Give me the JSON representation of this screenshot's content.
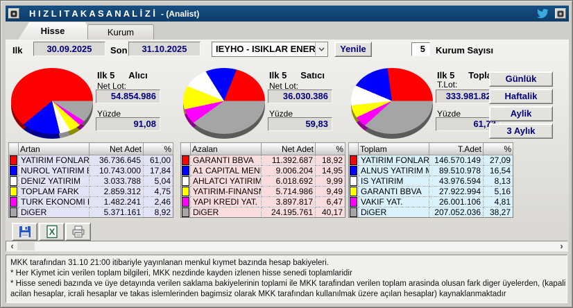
{
  "window": {
    "title": "H I Z L I   T A K A S   A N A L İ Z İ",
    "subtitle": "- (Analist)",
    "titlebar_color": "#0d3c69",
    "icons": [
      "app-icon",
      "twitter-bird-icon",
      "window-menu-icon"
    ]
  },
  "tabs": [
    {
      "label": "Hisse",
      "active": true
    },
    {
      "label": "Kurum",
      "active": false
    }
  ],
  "filters": {
    "start_label": "Ilk",
    "start_value": "30.09.2025",
    "end_label": "Son",
    "end_value": "31.10.2025",
    "symbol_value": "IEYHO - ISIKLAR ENERJI",
    "refresh_button": "Yenile",
    "firm_count_value": "5",
    "firm_count_label": "Kurum Sayısı"
  },
  "period_buttons": [
    {
      "label": "Günlük"
    },
    {
      "label": "Haftalik"
    },
    {
      "label": "Aylik"
    },
    {
      "label": "3 Aylık"
    }
  ],
  "panels": [
    {
      "rank_label": "Ilk 5",
      "side_label": "Alıcı",
      "lot_label": "Net Lot:",
      "lot_value": "54.854.986",
      "pct_label": "Yüzde",
      "pct_value": "91,08",
      "table": {
        "headers": [
          "Artan",
          "Net Adet",
          "%"
        ],
        "row_bg": "#e3e3f8",
        "rows": [
          {
            "color": "#ff0000",
            "name": "YATIRIM FONLARI",
            "value": "36.736.645",
            "pct": "61,00"
          },
          {
            "color": "#0000ff",
            "name": "NUROL YATIRIM B",
            "value": "10.743.000",
            "pct": "17,84"
          },
          {
            "color": "#ffffff",
            "name": "DENIZ YATIRIM",
            "value": "3.033.788",
            "pct": "5,04"
          },
          {
            "color": "#ffff00",
            "name": "TOPLAM FARK",
            "value": "2.859.312",
            "pct": "4,75"
          },
          {
            "color": "#ff00ff",
            "name": "TURK EKONOMI BA",
            "value": "1.482.241",
            "pct": "2,46"
          },
          {
            "color": "#a5a5a5",
            "name": "DiGER",
            "value": "5.371.161",
            "pct": "8,92"
          }
        ]
      }
    },
    {
      "rank_label": "Ilk 5",
      "side_label": "Satıcı",
      "lot_label": "Net Lot:",
      "lot_value": "36.030.386",
      "pct_label": "Yüzde",
      "pct_value": "59,83",
      "table": {
        "headers": [
          "Azalan",
          "Net Adet",
          "%"
        ],
        "row_bg": "#fbdddd",
        "rows": [
          {
            "color": "#ff0000",
            "name": "GARANTI BBVA",
            "value": "11.392.687",
            "pct": "18,92"
          },
          {
            "color": "#0000ff",
            "name": "A1 CAPITAL MENK",
            "value": "9.006.204",
            "pct": "14,95"
          },
          {
            "color": "#ffffff",
            "name": "AHLATCI YATIRIM",
            "value": "6.018.692",
            "pct": "9,99"
          },
          {
            "color": "#ffff00",
            "name": "YATIRIM-FINANSM",
            "value": "5.714.986",
            "pct": "9,49"
          },
          {
            "color": "#ff00ff",
            "name": "YAPI KREDI YAT.",
            "value": "3.897.817",
            "pct": "6,47"
          },
          {
            "color": "#a5a5a5",
            "name": "DiGER",
            "value": "24.195.761",
            "pct": "40,17"
          }
        ]
      }
    },
    {
      "rank_label": "Ilk 5",
      "side_label": "Toplam",
      "lot_label": "T.Lot:",
      "lot_value": "333.981.821",
      "pct_label": "Yüzde",
      "pct_value": "61,73",
      "table": {
        "headers": [
          "Toplam",
          "T.Adet",
          "%"
        ],
        "row_bg": "#d8f1fb",
        "rows": [
          {
            "color": "#ff0000",
            "name": "YATIRIM FONLARI",
            "value": "146.570.149",
            "pct": "27,09"
          },
          {
            "color": "#0000ff",
            "name": "ALNUS YATIRIM ME",
            "value": "89.510.978",
            "pct": "16,54"
          },
          {
            "color": "#ffffff",
            "name": "IS YATIRIM",
            "value": "43.976.594",
            "pct": "8,13"
          },
          {
            "color": "#ffff00",
            "name": "GARANTI BBVA",
            "value": "27.922.994",
            "pct": "5,16"
          },
          {
            "color": "#ff00ff",
            "name": "VAKIF YAT.",
            "value": "26.001.106",
            "pct": "4,81"
          },
          {
            "color": "#a5a5a5",
            "name": "DiGER",
            "value": "207.052.036",
            "pct": "38,27"
          }
        ]
      }
    }
  ],
  "chart_data": [
    {
      "type": "pie",
      "title": "Ilk 5 Alıcı",
      "net_lot": "54.854.986",
      "yuzde": "91,08",
      "labels": [
        "YATIRIM FONLARI",
        "NUROL YATIRIM B",
        "DENIZ YATIRIM",
        "TOPLAM FARK",
        "TURK EKONOMI BA",
        "DiGER"
      ],
      "values": [
        36736645,
        10743000,
        3033788,
        2859312,
        1482241,
        5371161
      ],
      "percentages": [
        61.0,
        17.84,
        5.04,
        4.75,
        2.46,
        8.92
      ],
      "colors": [
        "#ff0000",
        "#0000ff",
        "#ffffff",
        "#ffff00",
        "#ff00ff",
        "#a5a5a5"
      ],
      "legend_position": "table-below"
    },
    {
      "type": "pie",
      "title": "Ilk 5 Satıcı",
      "net_lot": "36.030.386",
      "yuzde": "59,83",
      "labels": [
        "GARANTI BBVA",
        "A1 CAPITAL MENK",
        "AHLATCI YATIRIM",
        "YATIRIM-FINANSM",
        "YAPI KREDI YAT.",
        "DiGER"
      ],
      "values": [
        11392687,
        9006204,
        6018692,
        5714986,
        3897817,
        24195761
      ],
      "percentages": [
        18.92,
        14.95,
        9.99,
        9.49,
        6.47,
        40.17
      ],
      "colors": [
        "#ff0000",
        "#0000ff",
        "#ffffff",
        "#ffff00",
        "#ff00ff",
        "#a5a5a5"
      ],
      "legend_position": "table-below"
    },
    {
      "type": "pie",
      "title": "Ilk 5 Toplam",
      "t_lot": "333.981.821",
      "yuzde": "61,73",
      "labels": [
        "YATIRIM FONLARI",
        "ALNUS YATIRIM ME",
        "IS YATIRIM",
        "GARANTI BBVA",
        "VAKIF YAT.",
        "DiGER"
      ],
      "values": [
        146570149,
        89510978,
        43976594,
        27922994,
        26001106,
        207052036
      ],
      "percentages": [
        27.09,
        16.54,
        8.13,
        5.16,
        4.81,
        38.27
      ],
      "colors": [
        "#ff0000",
        "#0000ff",
        "#ffffff",
        "#ffff00",
        "#ff00ff",
        "#a5a5a5"
      ],
      "legend_position": "table-below"
    }
  ],
  "toolbar": {
    "buttons": [
      "save",
      "export-excel",
      "print"
    ]
  },
  "footer": {
    "lines": [
      "MKK tarafından 31.10 21:00 itibariyle yayınlanan menkul kıymet bazında hesap bakiyeleri.",
      " * Her Kiymet icin verilen toplam bilgileri, MKK nezdinde kayden izlenen hisse senedi toplamlaridir",
      " * Hisse senedi bazında ve üye detayında verilen saklama bakiyelerinin toplami ile MKK tarafindan verilen toplam arasinda olusan fark diger üyelerden, (kapali araci kurumlar i",
      "acilan hesaplar, icrali hesaplar ve takas islemlerinden bagimsiz olarak MKK tarafından kullanılmak üzere açılan hesaplar) kaynaklanmaktadır"
    ]
  }
}
